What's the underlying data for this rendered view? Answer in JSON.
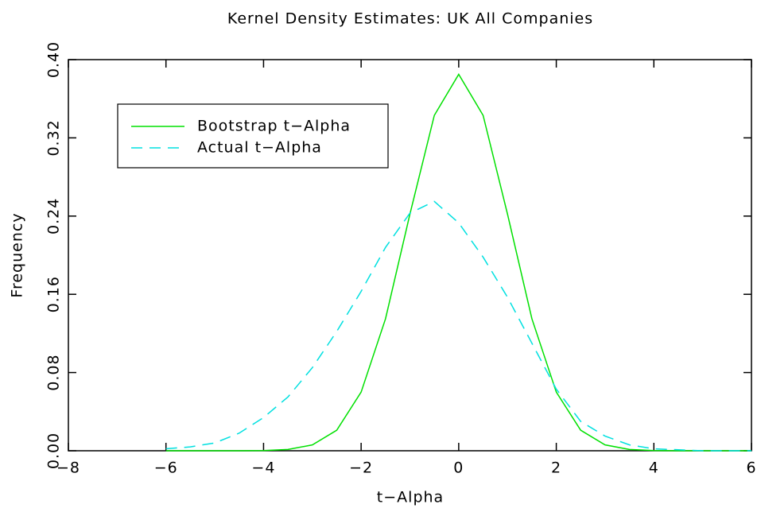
{
  "chart_data": {
    "type": "line",
    "title": "Kernel Density Estimates: UK All Companies",
    "x_label": "t−Alpha",
    "y_label": "Frequency",
    "x": [
      -6,
      -5.5,
      -5,
      -4.5,
      -4,
      -3.5,
      -3,
      -2.5,
      -2,
      -1.5,
      -1,
      -0.5,
      0,
      0.5,
      1,
      1.5,
      2,
      2.5,
      3,
      3.5,
      4,
      4.5,
      5,
      5.5,
      6
    ],
    "series": [
      {
        "name": "Bootstrap t−Alpha",
        "color": "#00e000",
        "dash": "solid",
        "values": [
          0,
          0,
          0,
          0,
          0.0002,
          0.0013,
          0.006,
          0.021,
          0.06,
          0.135,
          0.242,
          0.343,
          0.385,
          0.343,
          0.242,
          0.135,
          0.06,
          0.021,
          0.006,
          0.0013,
          0.0002,
          0,
          0,
          0,
          0
        ]
      },
      {
        "name": "Actual t−Alpha",
        "color": "#00e0e0",
        "dash": "dashed",
        "values": [
          0.002,
          0.004,
          0.008,
          0.018,
          0.034,
          0.055,
          0.085,
          0.122,
          0.163,
          0.208,
          0.243,
          0.255,
          0.233,
          0.198,
          0.157,
          0.11,
          0.063,
          0.03,
          0.015,
          0.006,
          0.002,
          0.001,
          0,
          0,
          0
        ]
      }
    ],
    "xlim": [
      -8,
      6
    ],
    "xticks": [
      {
        "value": -8,
        "label": "−8"
      },
      {
        "value": -6,
        "label": "−6"
      },
      {
        "value": -4,
        "label": "−4"
      },
      {
        "value": -2,
        "label": "−2"
      },
      0,
      2,
      4,
      6
    ],
    "ylim": [
      0,
      0.4
    ],
    "yticks": [
      {
        "value": 0,
        "label": "0.00"
      },
      {
        "value": 0.08,
        "label": "0.08"
      },
      {
        "value": 0.16,
        "label": "0.16"
      },
      {
        "value": 0.24,
        "label": "0.24"
      },
      {
        "value": 0.32,
        "label": "0.32"
      },
      {
        "value": 0.4,
        "label": "0.40"
      }
    ],
    "grid": false,
    "legend": "upper-left"
  }
}
